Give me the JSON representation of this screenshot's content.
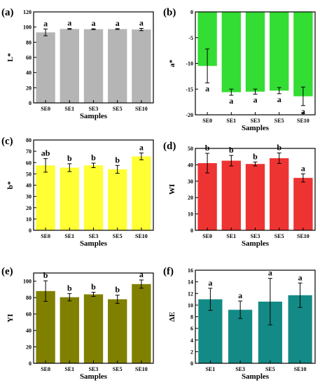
{
  "figure": {
    "panels": [
      {
        "label": "(a)",
        "ylabel": "L*",
        "xlabel": "Samples",
        "color": "#b5b5b5"
      },
      {
        "label": "(b)",
        "ylabel": "a*",
        "xlabel": "Samples",
        "color": "#33dd33"
      },
      {
        "label": "(c)",
        "ylabel": "b*",
        "xlabel": "Samples",
        "color": "#ffff33"
      },
      {
        "label": "(d)",
        "ylabel": "WI",
        "xlabel": "Samples",
        "color": "#ee3333"
      },
      {
        "label": "(e)",
        "ylabel": "YI",
        "xlabel": "Samples",
        "color": "#808000"
      },
      {
        "label": "(f)",
        "ylabel": "ΔE",
        "xlabel": "Samples",
        "color": "#138a85"
      }
    ]
  },
  "chart_data": [
    {
      "type": "bar",
      "title": "(a)",
      "xlabel": "Samples",
      "ylabel": "L*",
      "categories": [
        "SE0",
        "SE1",
        "SE3",
        "SE5",
        "SE10"
      ],
      "values": [
        93,
        97.5,
        97.2,
        97.4,
        96.8
      ],
      "errors": [
        4.5,
        0.6,
        0.6,
        0.6,
        1.5
      ],
      "significance": [
        "a",
        "a",
        "a",
        "a",
        "a"
      ],
      "ylim": [
        0,
        120
      ],
      "yticks": [
        0,
        20,
        40,
        60,
        80,
        100,
        120
      ],
      "bar_color": "#b5b5b5"
    },
    {
      "type": "bar",
      "title": "(b)",
      "xlabel": "Samples",
      "ylabel": "a*",
      "categories": [
        "SE0",
        "SE1",
        "SE3",
        "SE5",
        "SE10"
      ],
      "values": [
        -10.5,
        -15.6,
        -15.5,
        -15.3,
        -16.4
      ],
      "errors": [
        3.3,
        0.6,
        0.5,
        0.6,
        1.8
      ],
      "significance": [
        "a",
        "a",
        "a",
        "a",
        "a"
      ],
      "ylim": [
        -20,
        0
      ],
      "yticks": [
        0,
        -5,
        -10,
        -15,
        -20
      ],
      "bar_color": "#33dd33"
    },
    {
      "type": "bar",
      "title": "(c)",
      "xlabel": "Samples",
      "ylabel": "b*",
      "categories": [
        "SE0",
        "SE1",
        "SE3",
        "SE5",
        "SE10"
      ],
      "values": [
        57.5,
        55.5,
        57.5,
        54,
        65.5
      ],
      "errors": [
        6,
        3.5,
        2,
        3.5,
        3
      ],
      "significance": [
        "ab",
        "b",
        "b",
        "b",
        "a"
      ],
      "ylim": [
        0,
        80
      ],
      "yticks": [
        0,
        10,
        20,
        30,
        40,
        50,
        60,
        70,
        80
      ],
      "bar_color": "#ffff33"
    },
    {
      "type": "bar",
      "title": "(d)",
      "xlabel": "Samples",
      "ylabel": "WI",
      "categories": [
        "SE0",
        "SE1",
        "SE3",
        "SE5",
        "SE10"
      ],
      "values": [
        41,
        42.5,
        40.5,
        44,
        32
      ],
      "errors": [
        6,
        3.2,
        1.2,
        3.2,
        2.5
      ],
      "significance": [
        "b",
        "b",
        "b",
        "b",
        "a"
      ],
      "ylim": [
        0,
        50
      ],
      "yticks": [
        0,
        10,
        20,
        30,
        40,
        50
      ],
      "bar_color": "#ee3333"
    },
    {
      "type": "bar",
      "title": "(e)",
      "xlabel": "Samples",
      "ylabel": "YI",
      "categories": [
        "SE0",
        "SE1",
        "SE3",
        "SE5",
        "SE10"
      ],
      "values": [
        88,
        80.5,
        84,
        78,
        96.5
      ],
      "errors": [
        12.5,
        4.5,
        2.5,
        5,
        5
      ],
      "significance": [
        "b",
        "b",
        "b",
        "b",
        "a"
      ],
      "ylim": [
        0,
        110
      ],
      "yticks": [
        0,
        20,
        40,
        60,
        80,
        100
      ],
      "bar_color": "#808000"
    },
    {
      "type": "bar",
      "title": "(f)",
      "xlabel": "Samples",
      "ylabel": "ΔE",
      "categories": [
        "SE1",
        "SE3",
        "SE5",
        "SE10"
      ],
      "values": [
        11,
        9.2,
        10.6,
        11.7
      ],
      "errors": [
        1.9,
        1.5,
        4,
        2.1
      ],
      "significance": [
        "a",
        "a",
        "a",
        "a"
      ],
      "ylim": [
        0,
        16
      ],
      "yticks": [
        0,
        2,
        4,
        6,
        8,
        10,
        12,
        14,
        16
      ],
      "bar_color": "#138a85"
    }
  ]
}
